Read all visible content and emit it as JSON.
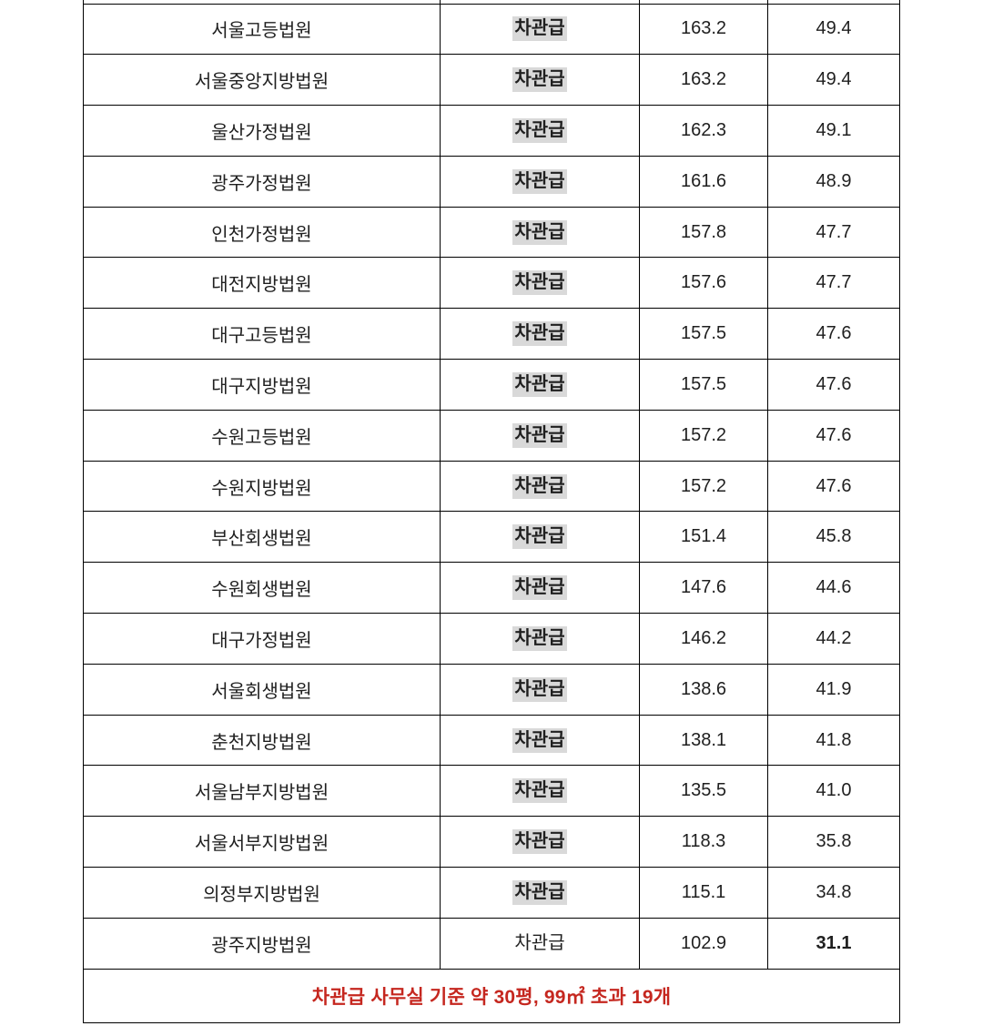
{
  "colors": {
    "grade_highlight": "#d9d9d9",
    "footer_note_red": "#c5271f",
    "table_border": "#000000",
    "body_text": "#1f1f1f"
  },
  "table": {
    "rows": [
      {
        "court": "서울고등법원",
        "grade": "차관급",
        "grade_highlight": true,
        "area_m2": "163.2",
        "area_pyeong": "49.4",
        "pyeong_bold": false
      },
      {
        "court": "서울중앙지방법원",
        "grade": "차관급",
        "grade_highlight": true,
        "area_m2": "163.2",
        "area_pyeong": "49.4",
        "pyeong_bold": false
      },
      {
        "court": "울산가정법원",
        "grade": "차관급",
        "grade_highlight": true,
        "area_m2": "162.3",
        "area_pyeong": "49.1",
        "pyeong_bold": false
      },
      {
        "court": "광주가정법원",
        "grade": "차관급",
        "grade_highlight": true,
        "area_m2": "161.6",
        "area_pyeong": "48.9",
        "pyeong_bold": false
      },
      {
        "court": "인천가정법원",
        "grade": "차관급",
        "grade_highlight": true,
        "area_m2": "157.8",
        "area_pyeong": "47.7",
        "pyeong_bold": false
      },
      {
        "court": "대전지방법원",
        "grade": "차관급",
        "grade_highlight": true,
        "area_m2": "157.6",
        "area_pyeong": "47.7",
        "pyeong_bold": false
      },
      {
        "court": "대구고등법원",
        "grade": "차관급",
        "grade_highlight": true,
        "area_m2": "157.5",
        "area_pyeong": "47.6",
        "pyeong_bold": false
      },
      {
        "court": "대구지방법원",
        "grade": "차관급",
        "grade_highlight": true,
        "area_m2": "157.5",
        "area_pyeong": "47.6",
        "pyeong_bold": false
      },
      {
        "court": "수원고등법원",
        "grade": "차관급",
        "grade_highlight": true,
        "area_m2": "157.2",
        "area_pyeong": "47.6",
        "pyeong_bold": false
      },
      {
        "court": "수원지방법원",
        "grade": "차관급",
        "grade_highlight": true,
        "area_m2": "157.2",
        "area_pyeong": "47.6",
        "pyeong_bold": false
      },
      {
        "court": "부산회생법원",
        "grade": "차관급",
        "grade_highlight": true,
        "area_m2": "151.4",
        "area_pyeong": "45.8",
        "pyeong_bold": false
      },
      {
        "court": "수원회생법원",
        "grade": "차관급",
        "grade_highlight": true,
        "area_m2": "147.6",
        "area_pyeong": "44.6",
        "pyeong_bold": false
      },
      {
        "court": "대구가정법원",
        "grade": "차관급",
        "grade_highlight": true,
        "area_m2": "146.2",
        "area_pyeong": "44.2",
        "pyeong_bold": false
      },
      {
        "court": "서울회생법원",
        "grade": "차관급",
        "grade_highlight": true,
        "area_m2": "138.6",
        "area_pyeong": "41.9",
        "pyeong_bold": false
      },
      {
        "court": "춘천지방법원",
        "grade": "차관급",
        "grade_highlight": true,
        "area_m2": "138.1",
        "area_pyeong": "41.8",
        "pyeong_bold": false
      },
      {
        "court": "서울남부지방법원",
        "grade": "차관급",
        "grade_highlight": true,
        "area_m2": "135.5",
        "area_pyeong": "41.0",
        "pyeong_bold": false
      },
      {
        "court": "서울서부지방법원",
        "grade": "차관급",
        "grade_highlight": true,
        "area_m2": "118.3",
        "area_pyeong": "35.8",
        "pyeong_bold": false
      },
      {
        "court": "의정부지방법원",
        "grade": "차관급",
        "grade_highlight": true,
        "area_m2": "115.1",
        "area_pyeong": "34.8",
        "pyeong_bold": false
      },
      {
        "court": "광주지방법원",
        "grade": "차관급",
        "grade_highlight": false,
        "area_m2": "102.9",
        "area_pyeong": "31.1",
        "pyeong_bold": true
      }
    ],
    "footer_note": "차관급 사무실 기준 약 30평, 99㎡ 초과 19개"
  }
}
